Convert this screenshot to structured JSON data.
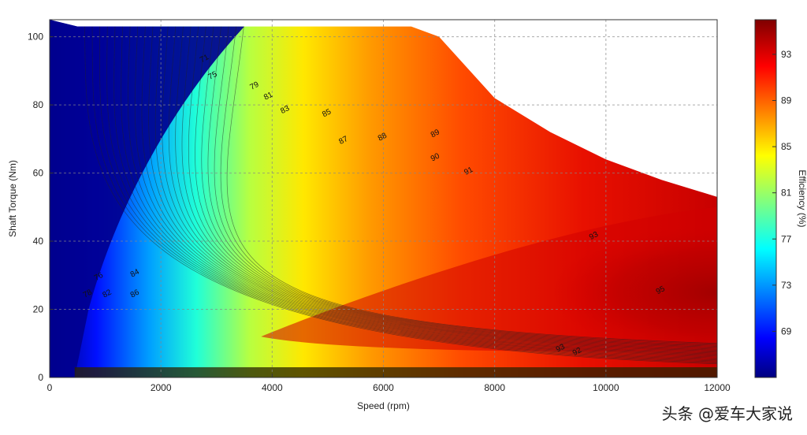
{
  "chart_data": {
    "type": "heatmap",
    "title": "",
    "xlabel": "Speed (rpm)",
    "ylabel": "Shaft Torque (Nm)",
    "colorbar_label": "Efficiency (%)",
    "xlim": [
      0,
      12000
    ],
    "ylim": [
      0,
      105
    ],
    "x_ticks": [
      0,
      2000,
      4000,
      6000,
      8000,
      10000,
      12000
    ],
    "y_ticks": [
      0,
      20,
      40,
      60,
      80,
      100
    ],
    "colorbar_ticks": [
      69,
      73,
      77,
      81,
      85,
      89,
      93
    ],
    "colorbar_range": [
      65,
      96
    ],
    "colormap": "jet",
    "grid": true,
    "torque_envelope": [
      {
        "x": 0,
        "y": 105
      },
      {
        "x": 500,
        "y": 103
      },
      {
        "x": 6500,
        "y": 103
      },
      {
        "x": 7000,
        "y": 100
      },
      {
        "x": 8000,
        "y": 82
      },
      {
        "x": 9000,
        "y": 72
      },
      {
        "x": 10000,
        "y": 64
      },
      {
        "x": 11000,
        "y": 58
      },
      {
        "x": 12000,
        "y": 53
      }
    ],
    "peak_efficiency_region": {
      "speed": [
        9000,
        12000
      ],
      "torque": [
        15,
        35
      ],
      "efficiency": 95
    },
    "contour_labels": [
      {
        "x": 2800,
        "y": 93,
        "value": "71"
      },
      {
        "x": 2950,
        "y": 88,
        "value": "75"
      },
      {
        "x": 3700,
        "y": 85,
        "value": "79"
      },
      {
        "x": 3950,
        "y": 82,
        "value": "81"
      },
      {
        "x": 4250,
        "y": 78,
        "value": "83"
      },
      {
        "x": 5000,
        "y": 77,
        "value": "85"
      },
      {
        "x": 5300,
        "y": 69,
        "value": "87"
      },
      {
        "x": 6000,
        "y": 70,
        "value": "88"
      },
      {
        "x": 6950,
        "y": 71,
        "value": "89"
      },
      {
        "x": 6950,
        "y": 64,
        "value": "90"
      },
      {
        "x": 7550,
        "y": 60,
        "value": "91"
      },
      {
        "x": 9800,
        "y": 41,
        "value": "93"
      },
      {
        "x": 11000,
        "y": 25,
        "value": "95"
      },
      {
        "x": 900,
        "y": 29,
        "value": "76"
      },
      {
        "x": 700,
        "y": 24,
        "value": "78"
      },
      {
        "x": 1050,
        "y": 24,
        "value": "82"
      },
      {
        "x": 1550,
        "y": 30,
        "value": "84"
      },
      {
        "x": 1550,
        "y": 24,
        "value": "86"
      },
      {
        "x": 9200,
        "y": 8,
        "value": "93"
      },
      {
        "x": 9500,
        "y": 7,
        "value": "92"
      }
    ]
  },
  "watermark": "头条 @爱车大家说"
}
